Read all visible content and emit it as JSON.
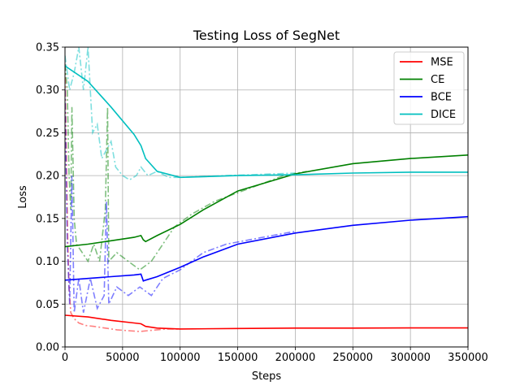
{
  "chart_data": {
    "type": "line",
    "title": "Testing Loss of SegNet",
    "xlabel": "Steps",
    "ylabel": "Loss",
    "xlim": [
      0,
      350000
    ],
    "ylim": [
      0,
      0.35
    ],
    "xticks": [
      0,
      50000,
      100000,
      150000,
      200000,
      250000,
      300000,
      350000
    ],
    "xtick_labels": [
      "0",
      "50000",
      "100000",
      "150000",
      "200000",
      "250000",
      "300000",
      "350000"
    ],
    "yticks": [
      0,
      0.05,
      0.1,
      0.15,
      0.2,
      0.25,
      0.3,
      0.35
    ],
    "ytick_labels": [
      "0.00",
      "0.05",
      "0.10",
      "0.15",
      "0.20",
      "0.25",
      "0.30",
      "0.35"
    ],
    "grid": true,
    "legend_position": "top-right",
    "series": [
      {
        "name": "MSE",
        "color": "#ff0000",
        "smoothed": [
          [
            0,
            0.037
          ],
          [
            20000,
            0.035
          ],
          [
            40000,
            0.031
          ],
          [
            60000,
            0.028
          ],
          [
            66000,
            0.027
          ],
          [
            70000,
            0.024
          ],
          [
            80000,
            0.022
          ],
          [
            100000,
            0.021
          ],
          [
            150000,
            0.0215
          ],
          [
            200000,
            0.022
          ],
          [
            250000,
            0.022
          ],
          [
            300000,
            0.0222
          ],
          [
            350000,
            0.0222
          ]
        ],
        "raw": [
          [
            0,
            0.33
          ],
          [
            1500,
            0.2
          ],
          [
            2500,
            0.12
          ],
          [
            3500,
            0.07
          ],
          [
            5000,
            0.04
          ],
          [
            8000,
            0.033
          ],
          [
            12000,
            0.028
          ],
          [
            18000,
            0.025
          ],
          [
            25000,
            0.024
          ],
          [
            35000,
            0.022
          ],
          [
            45000,
            0.02
          ],
          [
            55000,
            0.019
          ],
          [
            65000,
            0.018
          ],
          [
            72000,
            0.019
          ],
          [
            80000,
            0.02
          ],
          [
            90000,
            0.021
          ],
          [
            100000,
            0.021
          ]
        ]
      },
      {
        "name": "CE",
        "color": "#008000",
        "smoothed": [
          [
            0,
            0.117
          ],
          [
            20000,
            0.12
          ],
          [
            40000,
            0.124
          ],
          [
            60000,
            0.128
          ],
          [
            66000,
            0.13
          ],
          [
            68000,
            0.125
          ],
          [
            70000,
            0.123
          ],
          [
            80000,
            0.13
          ],
          [
            100000,
            0.143
          ],
          [
            120000,
            0.16
          ],
          [
            150000,
            0.182
          ],
          [
            200000,
            0.202
          ],
          [
            250000,
            0.214
          ],
          [
            300000,
            0.22
          ],
          [
            350000,
            0.224
          ]
        ],
        "raw": [
          [
            0,
            0.33
          ],
          [
            2000,
            0.3
          ],
          [
            3500,
            0.2
          ],
          [
            5000,
            0.16
          ],
          [
            6000,
            0.28
          ],
          [
            8000,
            0.15
          ],
          [
            10000,
            0.12
          ],
          [
            15000,
            0.11
          ],
          [
            20000,
            0.1
          ],
          [
            25000,
            0.12
          ],
          [
            30000,
            0.1
          ],
          [
            35000,
            0.16
          ],
          [
            37000,
            0.28
          ],
          [
            38000,
            0.1
          ],
          [
            45000,
            0.11
          ],
          [
            55000,
            0.1
          ],
          [
            65000,
            0.09
          ],
          [
            75000,
            0.1
          ],
          [
            85000,
            0.12
          ],
          [
            95000,
            0.14
          ],
          [
            110000,
            0.155
          ],
          [
            130000,
            0.17
          ],
          [
            150000,
            0.18
          ],
          [
            170000,
            0.19
          ],
          [
            190000,
            0.2
          ],
          [
            210000,
            0.205
          ]
        ]
      },
      {
        "name": "BCE",
        "color": "#0000ff",
        "smoothed": [
          [
            0,
            0.078
          ],
          [
            20000,
            0.08
          ],
          [
            40000,
            0.082
          ],
          [
            60000,
            0.084
          ],
          [
            66000,
            0.085
          ],
          [
            68000,
            0.077
          ],
          [
            70000,
            0.078
          ],
          [
            80000,
            0.082
          ],
          [
            100000,
            0.093
          ],
          [
            120000,
            0.105
          ],
          [
            150000,
            0.12
          ],
          [
            200000,
            0.133
          ],
          [
            250000,
            0.142
          ],
          [
            300000,
            0.148
          ],
          [
            350000,
            0.152
          ]
        ],
        "raw": [
          [
            0,
            0.3
          ],
          [
            2000,
            0.12
          ],
          [
            4000,
            0.05
          ],
          [
            6000,
            0.2
          ],
          [
            8000,
            0.04
          ],
          [
            12000,
            0.08
          ],
          [
            16000,
            0.04
          ],
          [
            22000,
            0.08
          ],
          [
            28000,
            0.045
          ],
          [
            34000,
            0.06
          ],
          [
            36000,
            0.17
          ],
          [
            38000,
            0.05
          ],
          [
            45000,
            0.07
          ],
          [
            55000,
            0.06
          ],
          [
            65000,
            0.07
          ],
          [
            75000,
            0.06
          ],
          [
            85000,
            0.08
          ],
          [
            100000,
            0.09
          ],
          [
            120000,
            0.11
          ],
          [
            140000,
            0.12
          ],
          [
            160000,
            0.125
          ],
          [
            180000,
            0.13
          ],
          [
            200000,
            0.135
          ]
        ]
      },
      {
        "name": "DICE",
        "color": "#00bfbf",
        "smoothed": [
          [
            0,
            0.328
          ],
          [
            20000,
            0.31
          ],
          [
            40000,
            0.28
          ],
          [
            60000,
            0.248
          ],
          [
            66000,
            0.235
          ],
          [
            70000,
            0.22
          ],
          [
            80000,
            0.205
          ],
          [
            100000,
            0.198
          ],
          [
            150000,
            0.2
          ],
          [
            200000,
            0.201
          ],
          [
            250000,
            0.203
          ],
          [
            300000,
            0.204
          ],
          [
            350000,
            0.204
          ]
        ],
        "raw": [
          [
            0,
            0.34
          ],
          [
            4000,
            0.3
          ],
          [
            8000,
            0.32
          ],
          [
            12000,
            0.35
          ],
          [
            16000,
            0.3
          ],
          [
            20000,
            0.35
          ],
          [
            24000,
            0.25
          ],
          [
            28000,
            0.26
          ],
          [
            32000,
            0.22
          ],
          [
            36000,
            0.23
          ],
          [
            40000,
            0.24
          ],
          [
            44000,
            0.21
          ],
          [
            50000,
            0.2
          ],
          [
            56000,
            0.195
          ],
          [
            62000,
            0.2
          ],
          [
            66000,
            0.21
          ],
          [
            72000,
            0.2
          ],
          [
            80000,
            0.205
          ],
          [
            90000,
            0.198
          ],
          [
            100000,
            0.198
          ],
          [
            120000,
            0.199
          ],
          [
            140000,
            0.2
          ],
          [
            160000,
            0.201
          ],
          [
            180000,
            0.202
          ],
          [
            200000,
            0.203
          ]
        ]
      }
    ]
  }
}
